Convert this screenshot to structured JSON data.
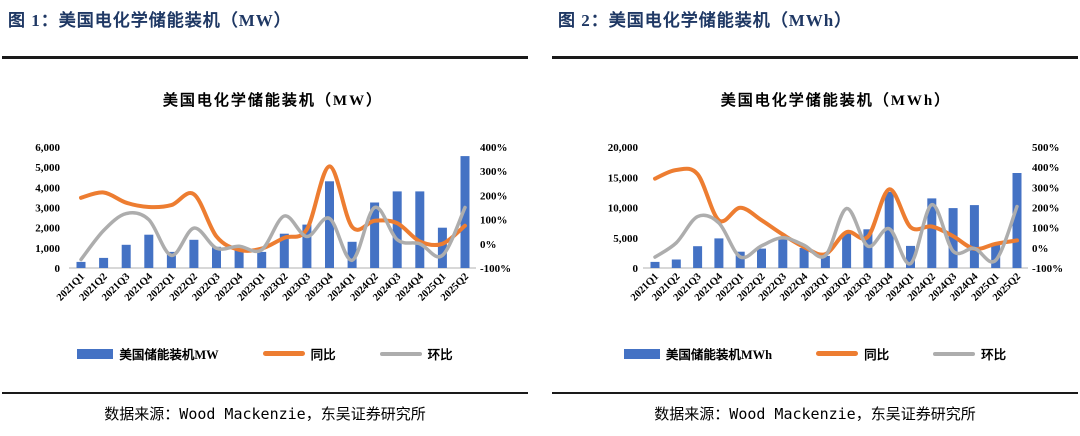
{
  "page": {
    "background": "#ffffff"
  },
  "colors": {
    "bar_blue": "#4472C4",
    "line_orange": "#ED7D31",
    "line_gray": "#ADADAD",
    "figure_title_navy": "#1F3864",
    "rule_black": "#1a1a1a",
    "axis_line_gray": "#C0C0C0"
  },
  "panels": [
    {
      "figure_title": "图 1：美国电化学储能装机（MW）",
      "source": "数据来源：Wood Mackenzie，东吴证券研究所"
    },
    {
      "figure_title": "图 2：美国电化学储能装机（MWh）",
      "source": "数据来源：Wood Mackenzie，东吴证券研究所"
    }
  ],
  "chart_data": [
    {
      "type": "combo",
      "title": "美国电化学储能装机（MW）",
      "categories": [
        "2021Q1",
        "2021Q2",
        "2021Q3",
        "2021Q4",
        "2022Q1",
        "2022Q2",
        "2022Q3",
        "2022Q4",
        "2023Q1",
        "2023Q2",
        "2023Q3",
        "2023Q4",
        "2024Q1",
        "2024Q2",
        "2024Q3",
        "2024Q4",
        "2025Q1",
        "2025Q2"
      ],
      "series": [
        {
          "name": "美国储能装机MW",
          "kind": "bar",
          "axis": "left",
          "color": "#4472C4",
          "values": [
            300,
            500,
            1150,
            1650,
            800,
            1400,
            1050,
            950,
            800,
            1700,
            2150,
            4300,
            1300,
            3250,
            3800,
            3800,
            2000,
            5550
          ]
        },
        {
          "name": "同比",
          "kind": "line",
          "axis": "right",
          "color": "#ED7D31",
          "values": [
            190,
            212,
            170,
            152,
            160,
            205,
            30,
            -25,
            -20,
            25,
            60,
            320,
            70,
            95,
            85,
            10,
            0,
            75
          ]
        },
        {
          "name": "环比",
          "kind": "line",
          "axis": "right",
          "color": "#ADADAD",
          "values": [
            -65,
            55,
            125,
            100,
            -48,
            65,
            -18,
            -10,
            -25,
            115,
            30,
            105,
            -68,
            150,
            17,
            0,
            -48,
            150
          ]
        }
      ],
      "left_axis": {
        "min": 0,
        "max": 6000,
        "step": 1000,
        "ticks": [
          "0",
          "1,000",
          "2,000",
          "3,000",
          "4,000",
          "5,000",
          "6,000"
        ]
      },
      "right_axis": {
        "min": -100,
        "max": 400,
        "step": 100,
        "ticks": [
          "-100%",
          "0%",
          "100%",
          "200%",
          "300%",
          "400%"
        ]
      },
      "legend_position": "bottom",
      "grid": false
    },
    {
      "type": "combo",
      "title": "美国电化学储能装机（MWh）",
      "categories": [
        "2021Q1",
        "2021Q2",
        "2021Q3",
        "2021Q4",
        "2022Q1",
        "2022Q2",
        "2022Q3",
        "2022Q4",
        "2023Q1",
        "2023Q2",
        "2023Q3",
        "2023Q4",
        "2024Q1",
        "2024Q2",
        "2024Q3",
        "2024Q4",
        "2025Q1",
        "2025Q2"
      ],
      "series": [
        {
          "name": "美国储能装机MWh",
          "kind": "bar",
          "axis": "left",
          "color": "#4472C4",
          "values": [
            1000,
            1400,
            3600,
            4900,
            2700,
            3200,
            4800,
            3300,
            2000,
            5800,
            6400,
            12600,
            3650,
            11500,
            9900,
            10400,
            4100,
            15700
          ]
        },
        {
          "name": "同比",
          "kind": "line",
          "axis": "right",
          "color": "#ED7D31",
          "values": [
            343,
            386,
            365,
            136,
            199,
            137,
            66,
            4,
            -31,
            78,
            55,
            290,
            103,
            106,
            58,
            -5,
            20,
            37
          ]
        },
        {
          "name": "环比",
          "kind": "line",
          "axis": "right",
          "color": "#ADADAD",
          "values": [
            -46,
            25,
            155,
            123,
            -45,
            10,
            50,
            13,
            -38,
            195,
            8,
            95,
            -78,
            214,
            -16,
            -3,
            -62,
            205
          ]
        }
      ],
      "left_axis": {
        "min": 0,
        "max": 20000,
        "step": 5000,
        "ticks": [
          "0",
          "5,000",
          "10,000",
          "15,000",
          "20,000"
        ]
      },
      "right_axis": {
        "min": -100,
        "max": 500,
        "step": 100,
        "ticks": [
          "-100%",
          "0%",
          "100%",
          "200%",
          "300%",
          "400%",
          "500%"
        ]
      },
      "legend_position": "bottom",
      "grid": false
    }
  ]
}
